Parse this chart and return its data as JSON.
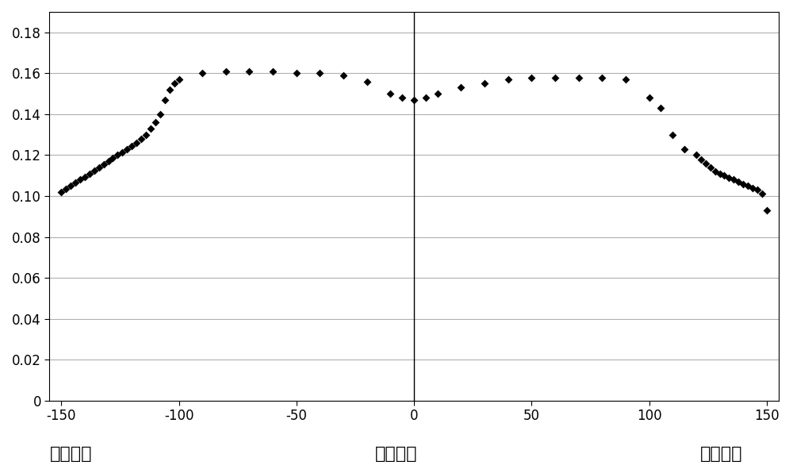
{
  "x": [
    -150,
    -148,
    -146,
    -144,
    -142,
    -140,
    -138,
    -136,
    -134,
    -132,
    -130,
    -128,
    -126,
    -124,
    -122,
    -120,
    -118,
    -116,
    -114,
    -112,
    -110,
    -108,
    -106,
    -104,
    -102,
    -100,
    -90,
    -80,
    -70,
    -60,
    -50,
    -40,
    -30,
    -20,
    -10,
    -5,
    0,
    5,
    10,
    20,
    30,
    40,
    50,
    60,
    70,
    80,
    90,
    100,
    105,
    110,
    115,
    120,
    122,
    124,
    126,
    128,
    130,
    132,
    134,
    136,
    138,
    140,
    142,
    144,
    146,
    148,
    150
  ],
  "y": [
    0.102,
    0.1035,
    0.105,
    0.1065,
    0.108,
    0.1095,
    0.111,
    0.1125,
    0.114,
    0.1155,
    0.117,
    0.1185,
    0.12,
    0.1215,
    0.123,
    0.1245,
    0.126,
    0.128,
    0.13,
    0.133,
    0.136,
    0.14,
    0.147,
    0.152,
    0.155,
    0.157,
    0.16,
    0.161,
    0.161,
    0.161,
    0.16,
    0.16,
    0.159,
    0.156,
    0.15,
    0.148,
    0.147,
    0.148,
    0.15,
    0.153,
    0.155,
    0.157,
    0.158,
    0.158,
    0.158,
    0.158,
    0.157,
    0.148,
    0.143,
    0.13,
    0.123,
    0.12,
    0.118,
    0.116,
    0.114,
    0.112,
    0.111,
    0.11,
    0.109,
    0.108,
    0.107,
    0.106,
    0.105,
    0.104,
    0.103,
    0.101,
    0.093
  ],
  "marker": "D",
  "marker_size": 5,
  "marker_color": "black",
  "xlim": [
    -155,
    155
  ],
  "ylim": [
    0,
    0.19
  ],
  "xticks": [
    -150,
    -100,
    -50,
    0,
    50,
    100,
    150
  ],
  "yticks": [
    0,
    0.02,
    0.04,
    0.06,
    0.08,
    0.1,
    0.12,
    0.14,
    0.16,
    0.18
  ],
  "xlabel_left": "晶片边缘",
  "xlabel_center": "晶片中心",
  "xlabel_right": "晶片边缘",
  "grid_color": "#b0b0b0",
  "background_color": "#ffffff",
  "spine_color": "#000000",
  "font_size_ticks": 12,
  "font_size_labels": 16,
  "figsize": [
    10.0,
    5.96
  ],
  "dpi": 100
}
